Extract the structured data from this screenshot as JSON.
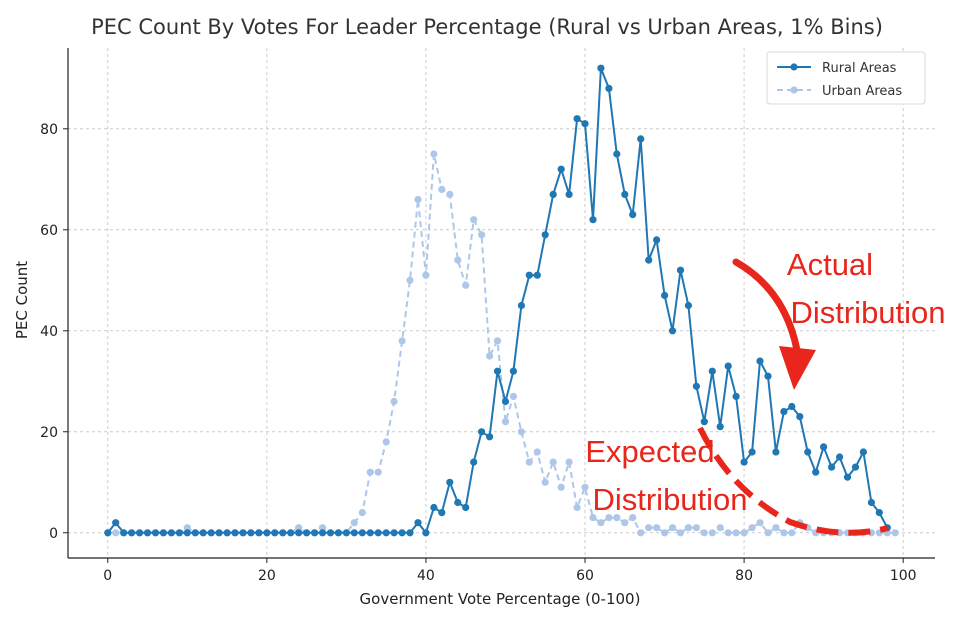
{
  "colors": {
    "rural": "#1f77b4",
    "urban": "#aec7e8",
    "annotation": "#e8261b",
    "grid": "#cccccc",
    "axis": "#222222"
  },
  "chart_data": {
    "type": "line",
    "title": "PEC Count By Votes For Leader Percentage (Rural vs Urban Areas, 1% Bins)",
    "xlabel": "Government Vote Percentage (0-100)",
    "ylabel": "PEC Count",
    "xlim": [
      -5,
      104
    ],
    "ylim": [
      -5,
      96
    ],
    "xticks": [
      0,
      20,
      40,
      60,
      80,
      100
    ],
    "yticks": [
      0,
      20,
      40,
      60,
      80
    ],
    "grid": true,
    "legend_position": "top-right",
    "series": [
      {
        "name": "Rural Areas",
        "style": "solid",
        "x": [
          0,
          1,
          2,
          3,
          4,
          5,
          6,
          7,
          8,
          9,
          10,
          11,
          12,
          13,
          14,
          15,
          16,
          17,
          18,
          19,
          20,
          21,
          22,
          23,
          24,
          25,
          26,
          27,
          28,
          29,
          30,
          31,
          32,
          33,
          34,
          35,
          36,
          37,
          38,
          39,
          40,
          41,
          42,
          43,
          44,
          45,
          46,
          47,
          48,
          49,
          50,
          51,
          52,
          53,
          54,
          55,
          56,
          57,
          58,
          59,
          60,
          61,
          62,
          63,
          64,
          65,
          66,
          67,
          68,
          69,
          70,
          71,
          72,
          73,
          74,
          75,
          76,
          77,
          78,
          79,
          80,
          81,
          82,
          83,
          84,
          85,
          86,
          87,
          88,
          89,
          90,
          91,
          92,
          93,
          94,
          95,
          96,
          97,
          98
        ],
        "y": [
          0,
          2,
          0,
          0,
          0,
          0,
          0,
          0,
          0,
          0,
          0,
          0,
          0,
          0,
          0,
          0,
          0,
          0,
          0,
          0,
          0,
          0,
          0,
          0,
          0,
          0,
          0,
          0,
          0,
          0,
          0,
          0,
          0,
          0,
          0,
          0,
          0,
          0,
          0,
          2,
          0,
          5,
          4,
          10,
          6,
          5,
          14,
          20,
          19,
          32,
          26,
          32,
          45,
          51,
          51,
          59,
          67,
          72,
          67,
          82,
          81,
          62,
          92,
          88,
          75,
          67,
          63,
          78,
          54,
          58,
          47,
          40,
          52,
          45,
          29,
          22,
          32,
          21,
          33,
          27,
          14,
          16,
          34,
          31,
          16,
          24,
          25,
          23,
          16,
          12,
          17,
          13,
          15,
          11,
          13,
          16,
          6,
          4,
          1
        ]
      },
      {
        "name": "Urban Areas",
        "style": "dashed",
        "x": [
          0,
          1,
          2,
          3,
          4,
          5,
          6,
          7,
          8,
          9,
          10,
          11,
          12,
          13,
          14,
          15,
          16,
          17,
          18,
          19,
          20,
          21,
          22,
          23,
          24,
          25,
          26,
          27,
          28,
          29,
          30,
          31,
          32,
          33,
          34,
          35,
          36,
          37,
          38,
          39,
          40,
          41,
          42,
          43,
          44,
          45,
          46,
          47,
          48,
          49,
          50,
          51,
          52,
          53,
          54,
          55,
          56,
          57,
          58,
          59,
          60,
          61,
          62,
          63,
          64,
          65,
          66,
          67,
          68,
          69,
          70,
          71,
          72,
          73,
          74,
          75,
          76,
          77,
          78,
          79,
          80,
          81,
          82,
          83,
          84,
          85,
          86,
          87,
          88,
          89,
          90,
          91,
          92,
          93,
          94,
          95,
          96,
          97,
          98,
          99
        ],
        "y": [
          0,
          0,
          0,
          0,
          0,
          0,
          0,
          0,
          0,
          0,
          1,
          0,
          0,
          0,
          0,
          0,
          0,
          0,
          0,
          0,
          0,
          0,
          0,
          0,
          1,
          0,
          0,
          1,
          0,
          0,
          0,
          2,
          4,
          12,
          12,
          18,
          26,
          38,
          50,
          66,
          51,
          75,
          68,
          67,
          54,
          49,
          62,
          59,
          35,
          38,
          22,
          27,
          20,
          14,
          16,
          10,
          14,
          9,
          14,
          5,
          9,
          3,
          2,
          3,
          3,
          2,
          3,
          0,
          1,
          1,
          0,
          1,
          0,
          1,
          1,
          0,
          0,
          1,
          0,
          0,
          0,
          1,
          2,
          0,
          1,
          0,
          0,
          2,
          1,
          0,
          0,
          0,
          0,
          0,
          0,
          0,
          0,
          0,
          0,
          0
        ]
      }
    ],
    "annotations": {
      "actual": [
        "Actual",
        "Distribution"
      ],
      "expected": [
        "Expected",
        "Distribution"
      ]
    }
  }
}
